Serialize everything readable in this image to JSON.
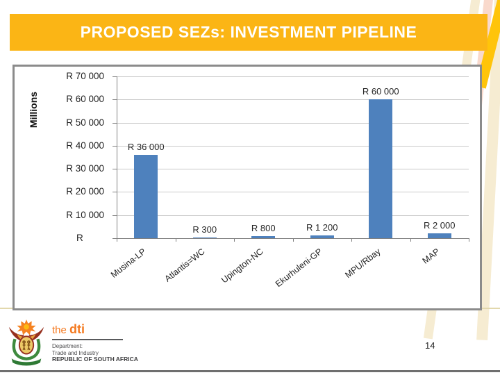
{
  "slide": {
    "title": "PROPOSED SEZs: INVESTMENT PIPELINE"
  },
  "chart_data": {
    "type": "bar",
    "title": "",
    "categories": [
      "Musina-LP",
      "Atlantis=WC",
      "Upington-NC",
      "Ekurhuleni-GP",
      "MPU/Rbay",
      "MAP"
    ],
    "values": [
      36000,
      300,
      800,
      1200,
      60000,
      2000
    ],
    "data_labels": [
      "R 36 000",
      "R 300",
      "R 800",
      "R 1 200",
      "R 60 000",
      "R 2 000"
    ],
    "xlabel": "",
    "ylabel": "Millions",
    "ylim": [
      0,
      70000
    ],
    "y_tick_values": [
      0,
      10000,
      20000,
      30000,
      40000,
      50000,
      60000,
      70000
    ],
    "y_tick_labels": [
      "R",
      "R 10 000",
      "R 20 000",
      "R 30 000",
      "R 40 000",
      "R 50 000",
      "R 60 000",
      "R 70 000"
    ],
    "grid": true,
    "legend": "none",
    "bar_color": "#4e81bd"
  },
  "footer": {
    "logo": {
      "brand_the": "the ",
      "brand_dti": "dti",
      "line1": "Department:",
      "line2": "Trade and Industry",
      "line3": "REPUBLIC OF SOUTH AFRICA"
    },
    "page_number": "14"
  },
  "colors": {
    "title_bar_gold": "#fbb515",
    "title_text": "#ffffff",
    "bar_blue": "#4e81bd",
    "chart_border_gray": "#8b8b8b",
    "gridline_gray": "#c9c9c9",
    "dti_orange": "#f4791f",
    "watermark_cream": "#f6ecd2",
    "watermark_pink": "#f9d9cc",
    "watermark_yellow": "#ffc40a"
  }
}
